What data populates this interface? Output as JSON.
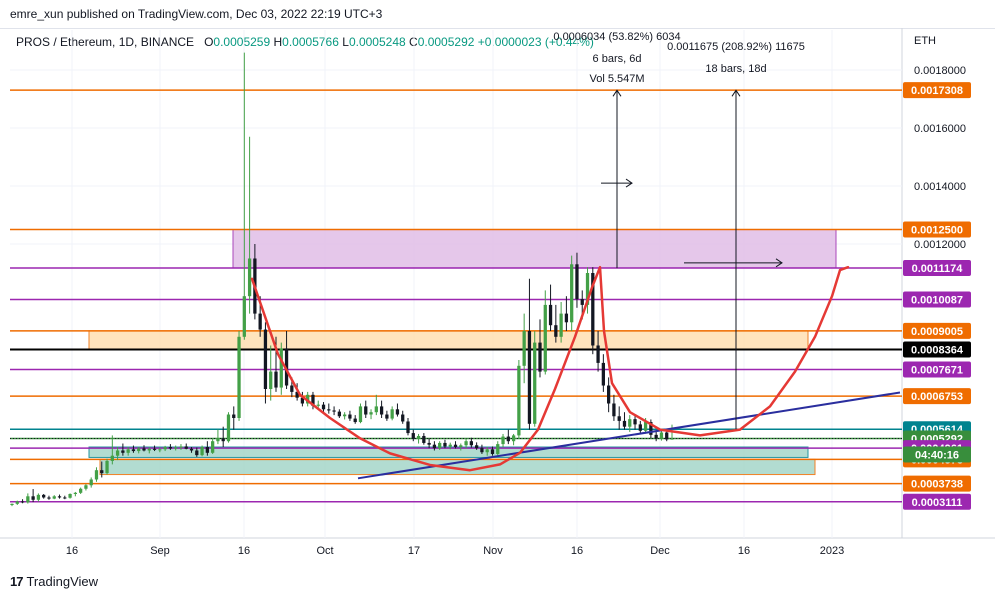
{
  "header": {
    "published": "emre_xun published on TradingView.com, Dec 03, 2022 22:19 UTC+3"
  },
  "legend": {
    "symbol": "PROS / Ethereum, 1D, BINANCE",
    "o_label": "O",
    "o": "0.0005259",
    "h_label": "H",
    "h": "0.0005766",
    "l_label": "L",
    "l": "0.0005248",
    "c_label": "C",
    "c": "0.0005292",
    "change": "+0.0000023 (+0.44%)"
  },
  "footer": {
    "logo_text": "TradingView",
    "logo_mark": "17"
  },
  "colors": {
    "orange": "#ef6c00",
    "purple": "#9c27b0",
    "teal": "#00838f",
    "green": "#388e3c",
    "blue": "#1e88e5",
    "navy": "#2a2e9e",
    "red_curve": "#e53935",
    "up": "#43a047",
    "down": "#131722",
    "pink_box": "#e1bee7",
    "yellow_box": "#ffe0b2",
    "teal_box": "#a5d6c9"
  },
  "chart_data": {
    "type": "candlestick",
    "currency": "ETH",
    "ylim": [
      0.00029,
      0.00187
    ],
    "y_ticks": [
      "0.0018000",
      "0.0016000",
      "0.0014000",
      "0.0012000"
    ],
    "x_ticks": [
      "16",
      "Sep",
      "16",
      "Oct",
      "17",
      "Nov",
      "16",
      "Dec",
      "16",
      "2023"
    ],
    "price_labels": [
      {
        "value": "0.0017308",
        "color": "#ef6c00"
      },
      {
        "value": "0.0012500",
        "color": "#ef6c00"
      },
      {
        "value": "0.0011174",
        "color": "#9c27b0"
      },
      {
        "value": "0.0010087",
        "color": "#9c27b0"
      },
      {
        "value": "0.0009005",
        "color": "#ef6c00"
      },
      {
        "value": "0.0008364",
        "color": "#000000"
      },
      {
        "value": "0.0007671",
        "color": "#9c27b0"
      },
      {
        "value": "0.0006753",
        "color": "#ef6c00"
      },
      {
        "value": "0.0005614",
        "color": "#00838f"
      },
      {
        "value": "0.0005292",
        "color": "#388e3c"
      },
      {
        "value": "0.0004961",
        "color": "#9c27b0"
      },
      {
        "value": "0.0004573",
        "color": "#ef6c00"
      },
      {
        "value": "0.0003738",
        "color": "#ef6c00"
      },
      {
        "value": "0.0003111",
        "color": "#9c27b0"
      }
    ],
    "countdown": "04:40:16",
    "measurements": [
      {
        "line1": "0.0006034 (53.82%) 6034",
        "line2": "6 bars, 6d",
        "line3": "Vol 5.547M"
      },
      {
        "line1": "0.0011675 (208.92%) 11675",
        "line2": "18 bars, 18d"
      }
    ],
    "candles": [
      [
        0.0003,
        0.000305,
        0.000296,
        0.000304
      ],
      [
        0.000304,
        0.000315,
        0.0003,
        0.000312
      ],
      [
        0.000312,
        0.00032,
        0.000306,
        0.000309
      ],
      [
        0.000309,
        0.00034,
        0.000305,
        0.00033
      ],
      [
        0.00033,
        0.000355,
        0.00031,
        0.000318
      ],
      [
        0.000318,
        0.00034,
        0.000312,
        0.000335
      ],
      [
        0.000335,
        0.000338,
        0.000322,
        0.000326
      ],
      [
        0.000326,
        0.000332,
        0.000318,
        0.000322
      ],
      [
        0.000322,
        0.000334,
        0.00032,
        0.00033
      ],
      [
        0.00033,
        0.000336,
        0.000322,
        0.000326
      ],
      [
        0.000326,
        0.000332,
        0.00032,
        0.000325
      ],
      [
        0.000325,
        0.00034,
        0.000322,
        0.000338
      ],
      [
        0.000338,
        0.000345,
        0.00033,
        0.000342
      ],
      [
        0.000342,
        0.00036,
        0.000338,
        0.000356
      ],
      [
        0.000356,
        0.000372,
        0.00035,
        0.000368
      ],
      [
        0.000368,
        0.000395,
        0.00036,
        0.000388
      ],
      [
        0.000388,
        0.00043,
        0.00038,
        0.00042
      ],
      [
        0.00042,
        0.00045,
        0.000395,
        0.00041
      ],
      [
        0.00041,
        0.00046,
        0.000405,
        0.000452
      ],
      [
        0.000452,
        0.00054,
        0.00044,
        0.00047
      ],
      [
        0.00047,
        0.0005,
        0.000455,
        0.000488
      ],
      [
        0.000488,
        0.000512,
        0.00047,
        0.00048
      ],
      [
        0.00048,
        0.0005,
        0.00047,
        0.000492
      ],
      [
        0.000492,
        0.000505,
        0.00048,
        0.000486
      ],
      [
        0.000486,
        0.0005,
        0.000478,
        0.000495
      ],
      [
        0.000495,
        0.000506,
        0.000485,
        0.000488
      ],
      [
        0.000488,
        0.000498,
        0.000478,
        0.000494
      ],
      [
        0.000494,
        0.000505,
        0.000486,
        0.00049
      ],
      [
        0.00049,
        0.000498,
        0.000482,
        0.000492
      ],
      [
        0.000492,
        0.000504,
        0.000486,
        0.0005
      ],
      [
        0.0005,
        0.00051,
        0.00049,
        0.000495
      ],
      [
        0.000495,
        0.000505,
        0.000488,
        0.000498
      ],
      [
        0.000498,
        0.00051,
        0.00049,
        0.000502
      ],
      [
        0.000502,
        0.000512,
        0.000492,
        0.000494
      ],
      [
        0.000494,
        0.0005,
        0.00048,
        0.000488
      ],
      [
        0.000488,
        0.000498,
        0.000466,
        0.000472
      ],
      [
        0.000472,
        0.000505,
        0.000468,
        0.0005
      ],
      [
        0.0005,
        0.00052,
        0.00047,
        0.00048
      ],
      [
        0.00048,
        0.00053,
        0.000476,
        0.00052
      ],
      [
        0.00052,
        0.00056,
        0.00051,
        0.00053
      ],
      [
        0.00053,
        0.00057,
        0.0005,
        0.00052
      ],
      [
        0.00052,
        0.00062,
        0.000515,
        0.000612
      ],
      [
        0.000612,
        0.00064,
        0.00056,
        0.0006
      ],
      [
        0.0006,
        0.0009,
        0.00059,
        0.00088
      ],
      [
        0.00088,
        0.00186,
        0.00087,
        0.00102
      ],
      [
        0.00102,
        0.00157,
        0.00096,
        0.00115
      ],
      [
        0.00115,
        0.0012,
        0.00094,
        0.00096
      ],
      [
        0.00096,
        0.00102,
        0.00088,
        0.000905
      ],
      [
        0.000905,
        0.00093,
        0.00065,
        0.0007
      ],
      [
        0.0007,
        0.00085,
        0.00066,
        0.00076
      ],
      [
        0.00076,
        0.00088,
        0.00069,
        0.000705
      ],
      [
        0.000705,
        0.00086,
        0.00068,
        0.00084
      ],
      [
        0.00084,
        0.0009,
        0.0007,
        0.000712
      ],
      [
        0.000712,
        0.00074,
        0.000672,
        0.00069
      ],
      [
        0.00069,
        0.00072,
        0.00066,
        0.00067
      ],
      [
        0.00067,
        0.00069,
        0.00064,
        0.00065
      ],
      [
        0.00065,
        0.00069,
        0.00064,
        0.00068
      ],
      [
        0.00068,
        0.00069,
        0.00063,
        0.000642
      ],
      [
        0.000642,
        0.00066,
        0.000628,
        0.000646
      ],
      [
        0.000646,
        0.000655,
        0.00062,
        0.00063
      ],
      [
        0.00063,
        0.00065,
        0.000615,
        0.000626
      ],
      [
        0.000626,
        0.00064,
        0.00061,
        0.000622
      ],
      [
        0.000622,
        0.00063,
        0.0006,
        0.000606
      ],
      [
        0.000606,
        0.00062,
        0.000595,
        0.000612
      ],
      [
        0.000612,
        0.000625,
        0.00059,
        0.000598
      ],
      [
        0.000598,
        0.00061,
        0.00058,
        0.000586
      ],
      [
        0.000586,
        0.00065,
        0.000582,
        0.00064
      ],
      [
        0.00064,
        0.00066,
        0.0006,
        0.000612
      ],
      [
        0.000612,
        0.00063,
        0.000596,
        0.00062
      ],
      [
        0.00062,
        0.00068,
        0.00061,
        0.00064
      ],
      [
        0.00064,
        0.00066,
        0.0006,
        0.000612
      ],
      [
        0.000612,
        0.000625,
        0.00059,
        0.000598
      ],
      [
        0.000598,
        0.00064,
        0.000592,
        0.00063
      ],
      [
        0.00063,
        0.00065,
        0.000605,
        0.000612
      ],
      [
        0.000612,
        0.000625,
        0.00058,
        0.000588
      ],
      [
        0.000588,
        0.0006,
        0.00054,
        0.000548
      ],
      [
        0.000548,
        0.00056,
        0.00052,
        0.000528
      ],
      [
        0.000528,
        0.000545,
        0.000512,
        0.000538
      ],
      [
        0.000538,
        0.000548,
        0.000508,
        0.000514
      ],
      [
        0.000514,
        0.00053,
        0.000496,
        0.000508
      ],
      [
        0.000508,
        0.00052,
        0.000488,
        0.000496
      ],
      [
        0.000496,
        0.00052,
        0.00049,
        0.000514
      ],
      [
        0.000514,
        0.000525,
        0.000496,
        0.000502
      ],
      [
        0.000502,
        0.000515,
        0.000492,
        0.000508
      ],
      [
        0.000508,
        0.00052,
        0.000495,
        0.0005
      ],
      [
        0.0005,
        0.000512,
        0.000488,
        0.000506
      ],
      [
        0.000506,
        0.00053,
        0.000495,
        0.00052
      ],
      [
        0.00052,
        0.000532,
        0.000498,
        0.000506
      ],
      [
        0.000506,
        0.000516,
        0.00049,
        0.000496
      ],
      [
        0.000496,
        0.000508,
        0.000476,
        0.000482
      ],
      [
        0.000482,
        0.0005,
        0.00047,
        0.000492
      ],
      [
        0.000492,
        0.000502,
        0.00047,
        0.000476
      ],
      [
        0.000476,
        0.00052,
        0.00047,
        0.00051
      ],
      [
        0.00051,
        0.000545,
        0.0005,
        0.000536
      ],
      [
        0.000536,
        0.00056,
        0.00051,
        0.00052
      ],
      [
        0.00052,
        0.000545,
        0.000506,
        0.00054
      ],
      [
        0.00054,
        0.0008,
        0.00053,
        0.00078
      ],
      [
        0.00078,
        0.00096,
        0.00072,
        0.0009
      ],
      [
        0.0009,
        0.00108,
        0.00056,
        0.00058
      ],
      [
        0.00058,
        0.0009,
        0.00057,
        0.00086
      ],
      [
        0.00086,
        0.00094,
        0.00074,
        0.00076
      ],
      [
        0.00076,
        0.00104,
        0.00075,
        0.00099
      ],
      [
        0.00099,
        0.00106,
        0.0009,
        0.00092
      ],
      [
        0.00092,
        0.00099,
        0.00086,
        0.00088
      ],
      [
        0.00088,
        0.001,
        0.00086,
        0.00096
      ],
      [
        0.00096,
        0.00102,
        0.0009,
        0.00093
      ],
      [
        0.00093,
        0.00116,
        0.0009,
        0.00113
      ],
      [
        0.00113,
        0.00117,
        0.00098,
        0.00101
      ],
      [
        0.00101,
        0.00104,
        0.00094,
        0.00099
      ],
      [
        0.00099,
        0.00112,
        0.00096,
        0.0011
      ],
      [
        0.0011,
        0.00112,
        0.00082,
        0.00085
      ],
      [
        0.00085,
        0.0009,
        0.00076,
        0.00079
      ],
      [
        0.00079,
        0.00082,
        0.00069,
        0.000712
      ],
      [
        0.000712,
        0.00074,
        0.00062,
        0.00065
      ],
      [
        0.00065,
        0.00068,
        0.00059,
        0.000606
      ],
      [
        0.000606,
        0.00064,
        0.00056,
        0.00059
      ],
      [
        0.00059,
        0.00062,
        0.00056,
        0.00057
      ],
      [
        0.00057,
        0.00061,
        0.000552,
        0.000596
      ],
      [
        0.000596,
        0.00061,
        0.00056,
        0.000578
      ],
      [
        0.000578,
        0.00059,
        0.000548,
        0.000556
      ],
      [
        0.000556,
        0.0006,
        0.000546,
        0.000586
      ],
      [
        0.000586,
        0.000595,
        0.00053,
        0.000542
      ],
      [
        0.000542,
        0.000556,
        0.00052,
        0.00053
      ],
      [
        0.00053,
        0.00056,
        0.000522,
        0.00055
      ],
      [
        0.00055,
        0.00056,
        0.00052,
        0.000526
      ],
      [
        0.000526,
        0.000577,
        0.000525,
        0.000529
      ]
    ]
  }
}
